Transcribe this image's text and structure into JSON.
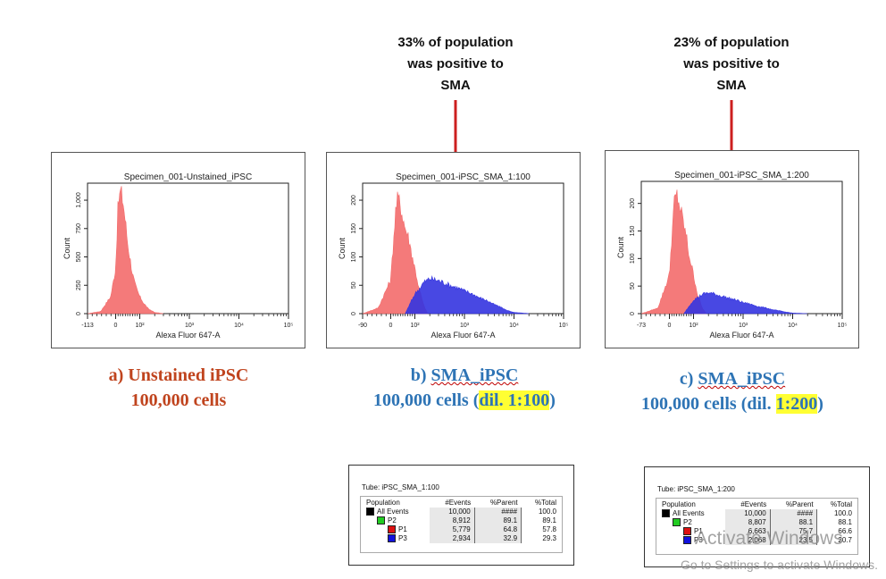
{
  "annotations": [
    {
      "lines": [
        "33% of population",
        "was positive to",
        "SMA"
      ]
    },
    {
      "lines": [
        "23% of population",
        "was positive to",
        "SMA"
      ]
    }
  ],
  "captions": {
    "a": {
      "line1": "a)   Unstained iPSC",
      "line2": "100,000 cells"
    },
    "b": {
      "line1_prefix": "b) ",
      "line1_main": "SMA_iPSC",
      "line2_prefix": "100,000 cells (",
      "line2_highlight": "dil. 1:100",
      "line2_suffix": ")"
    },
    "c": {
      "line1_prefix": "c) ",
      "line1_main": "SMA_iPSC",
      "line2_prefix": "100,000 cells (dil. ",
      "line2_highlight": "1:200",
      "line2_suffix": ")"
    }
  },
  "colors": {
    "unstained": "#f36b6b",
    "positive": "#3434e0",
    "arrow": "#cc1f1f",
    "highlight": "#ffff33"
  },
  "chart_data": [
    {
      "type": "area",
      "title": "Specimen_001-Unstained_iPSC",
      "xlabel": "Alexa Fluor 647-A",
      "ylabel": "Count",
      "x_scale": "biexponential",
      "x_tick_labels": [
        "-113",
        "0",
        "10²",
        "10³",
        "10⁴",
        "10⁵"
      ],
      "y_ticks": [
        0,
        250,
        500,
        750,
        1000
      ],
      "y_tick_labels": [
        "0",
        "250",
        "500",
        "750",
        "1,000"
      ],
      "ylim": [
        0,
        1150
      ],
      "xlim": [
        -113,
        100000
      ],
      "series": [
        {
          "color": "#f36b6b",
          "x": [
            -113,
            -60,
            -20,
            0,
            10,
            20,
            30,
            40,
            50,
            60,
            70,
            80,
            90,
            100,
            120,
            150,
            200,
            300
          ],
          "values": [
            0,
            20,
            150,
            400,
            950,
            1080,
            1000,
            820,
            620,
            480,
            350,
            260,
            200,
            150,
            90,
            40,
            10,
            0
          ]
        }
      ]
    },
    {
      "type": "area",
      "title": "Specimen_001-iPSC_SMA_1:100",
      "xlabel": "Alexa Fluor 647-A",
      "ylabel": "Count",
      "x_scale": "biexponential",
      "x_tick_labels": [
        "-90",
        "0",
        "10²",
        "10³",
        "10⁴",
        "10⁵"
      ],
      "y_ticks": [
        0,
        50,
        100,
        150,
        200
      ],
      "y_tick_labels": [
        "0",
        "50",
        "100",
        "150",
        "200"
      ],
      "ylim": [
        0,
        230
      ],
      "xlim": [
        -90,
        100000
      ],
      "series": [
        {
          "color": "#f36b6b",
          "x": [
            -90,
            -40,
            0,
            10,
            20,
            30,
            40,
            50,
            60,
            70,
            80,
            100,
            120,
            150,
            180
          ],
          "values": [
            0,
            10,
            60,
            120,
            180,
            205,
            190,
            170,
            150,
            140,
            120,
            80,
            45,
            15,
            0
          ]
        },
        {
          "color": "#3434e0",
          "x": [
            60,
            100,
            150,
            200,
            300,
            500,
            1000,
            2000,
            4000,
            7000,
            10000,
            20000
          ],
          "values": [
            0,
            35,
            55,
            62,
            58,
            50,
            40,
            28,
            16,
            6,
            2,
            0
          ]
        }
      ]
    },
    {
      "type": "area",
      "title": "Specimen_001-iPSC_SMA_1:200",
      "xlabel": "Alexa Fluor 647-A",
      "ylabel": "Count",
      "x_scale": "biexponential",
      "x_tick_labels": [
        "-73",
        "0",
        "10²",
        "10³",
        "10⁴",
        "10⁵"
      ],
      "y_ticks": [
        0,
        50,
        100,
        150,
        200
      ],
      "y_tick_labels": [
        "0",
        "50",
        "100",
        "150",
        "200"
      ],
      "ylim": [
        0,
        240
      ],
      "xlim": [
        -73,
        100000
      ],
      "series": [
        {
          "color": "#f36b6b",
          "x": [
            -73,
            -30,
            0,
            10,
            20,
            30,
            40,
            50,
            60,
            70,
            80,
            100,
            120,
            150,
            180
          ],
          "values": [
            0,
            10,
            70,
            140,
            200,
            215,
            200,
            180,
            160,
            140,
            110,
            70,
            35,
            10,
            0
          ]
        },
        {
          "color": "#3434e0",
          "x": [
            60,
            100,
            150,
            200,
            300,
            500,
            1000,
            2000,
            4000,
            7000,
            10000,
            20000
          ],
          "values": [
            0,
            25,
            35,
            38,
            34,
            28,
            20,
            13,
            7,
            3,
            1,
            0
          ]
        }
      ]
    },
    {
      "type": "table",
      "tube": "Tube:  iPSC_SMA_1:100",
      "columns": [
        "Population",
        "#Events",
        "%Parent",
        "%Total"
      ],
      "rows": [
        {
          "name": "All Events",
          "color": "#000000",
          "indent": 0,
          "events": "10,000",
          "parent": "####",
          "total": "100.0"
        },
        {
          "name": "P2",
          "color": "#22cc22",
          "indent": 1,
          "events": "8,912",
          "parent": "89.1",
          "total": "89.1"
        },
        {
          "name": "P1",
          "color": "#dd1111",
          "indent": 2,
          "events": "5,779",
          "parent": "64.8",
          "total": "57.8"
        },
        {
          "name": "P3",
          "color": "#1111dd",
          "indent": 2,
          "events": "2,934",
          "parent": "32.9",
          "total": "29.3"
        }
      ]
    },
    {
      "type": "table",
      "tube": "Tube:  iPSC_SMA_1:200",
      "columns": [
        "Population",
        "#Events",
        "%Parent",
        "%Total"
      ],
      "rows": [
        {
          "name": "All Events",
          "color": "#000000",
          "indent": 0,
          "events": "10,000",
          "parent": "####",
          "total": "100.0"
        },
        {
          "name": "P2",
          "color": "#22cc22",
          "indent": 1,
          "events": "8,807",
          "parent": "88.1",
          "total": "88.1"
        },
        {
          "name": "P1",
          "color": "#dd1111",
          "indent": 2,
          "events": "6,663",
          "parent": "75.7",
          "total": "66.6"
        },
        {
          "name": "P3",
          "color": "#1111dd",
          "indent": 2,
          "events": "2,068",
          "parent": "23.5",
          "total": "20.7"
        }
      ]
    }
  ],
  "watermark": {
    "line1": "Activate Windows",
    "line2": "Go to Settings to activate Windows."
  }
}
